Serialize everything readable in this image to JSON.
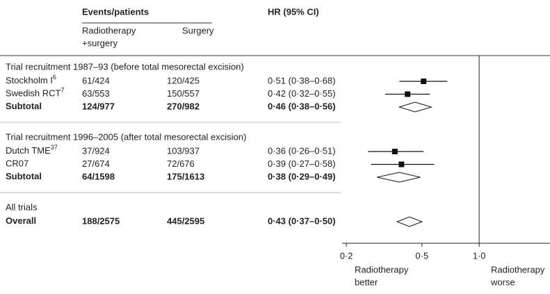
{
  "chart_data": {
    "type": "forest",
    "header": {
      "events": "Events/patients",
      "rt": [
        "Radiotherapy",
        "+surgery"
      ],
      "surgery": "Surgery",
      "hr": "HR (95% CI)"
    },
    "groups": [
      {
        "heading": "Trial recruitment 1987–93 (before total mesorectal excision)",
        "studies": [
          {
            "label": "Stockholm I",
            "sup": "6",
            "rt": "61/424",
            "surgery": "120/425",
            "hr_label": "0·51 (0·38–0·68)",
            "hr": 0.51,
            "lo": 0.38,
            "hi": 0.68
          },
          {
            "label": "Swedish RCT",
            "sup": "7",
            "rt": "63/553",
            "surgery": "150/557",
            "hr_label": "0·42 (0·32–0·55)",
            "hr": 0.42,
            "lo": 0.32,
            "hi": 0.55
          }
        ],
        "subtotal": {
          "label": "Subtotal",
          "rt": "124/977",
          "surgery": "270/982",
          "hr_label": "0·46 (0·38–0·56)",
          "hr": 0.46,
          "lo": 0.38,
          "hi": 0.56
        }
      },
      {
        "heading": "Trial recruitment 1996–2005 (after total mesorectal excision)",
        "studies": [
          {
            "label": "Dutch TME",
            "sup": "37",
            "rt": "37/924",
            "surgery": "103/937",
            "hr_label": "0·36 (0·26–0·51)",
            "hr": 0.36,
            "lo": 0.26,
            "hi": 0.51
          },
          {
            "label": "CR07",
            "rt": "27/674",
            "surgery": "72/676",
            "hr_label": "0·39 (0·27–0·58)",
            "hr": 0.39,
            "lo": 0.27,
            "hi": 0.58
          }
        ],
        "subtotal": {
          "label": "Subtotal",
          "rt": "64/1598",
          "surgery": "175/1613",
          "hr_label": "0·38 (0·29–0·49)",
          "hr": 0.38,
          "lo": 0.29,
          "hi": 0.49
        }
      },
      {
        "heading": "All trials",
        "studies": [],
        "subtotal": {
          "label": "Overall",
          "rt": "188/2575",
          "surgery": "445/2595",
          "hr_label": "0·43 (0·37–0·50)",
          "hr": 0.43,
          "lo": 0.37,
          "hi": 0.5
        }
      }
    ],
    "log": true,
    "xlim": [
      0.19,
      2.36
    ],
    "xticks": [
      {
        "value": 0.2,
        "label": "0·2"
      },
      {
        "value": 0.5,
        "label": "0·5"
      },
      {
        "value": 1.0,
        "label": "1·0"
      }
    ],
    "reference": 1.0,
    "left_note": [
      "Radiotherapy",
      "better"
    ],
    "right_note": [
      "Radiotherapy",
      "worse"
    ],
    "color": "#111111"
  }
}
